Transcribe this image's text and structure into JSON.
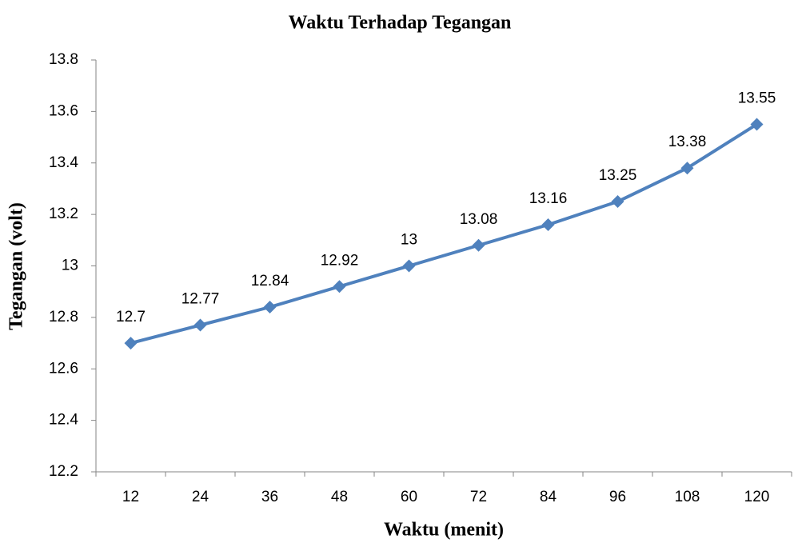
{
  "chart_data": {
    "type": "line",
    "title": "Waktu Terhadap Tegangan",
    "x_label": "Waktu (menit)",
    "y_label": "Tegangan (volt)",
    "categories": [
      "12",
      "24",
      "36",
      "48",
      "60",
      "72",
      "84",
      "96",
      "108",
      "120"
    ],
    "series": [
      {
        "name": "Tegangan",
        "color": "#4f81bd",
        "values": [
          12.7,
          12.77,
          12.84,
          12.92,
          13,
          13.08,
          13.16,
          13.25,
          13.38,
          13.55
        ]
      }
    ],
    "ylim": [
      12.2,
      13.8
    ],
    "yticks": [
      12.2,
      12.4,
      12.6,
      12.8,
      13,
      13.2,
      13.4,
      13.6,
      13.8
    ],
    "grid": false
  }
}
